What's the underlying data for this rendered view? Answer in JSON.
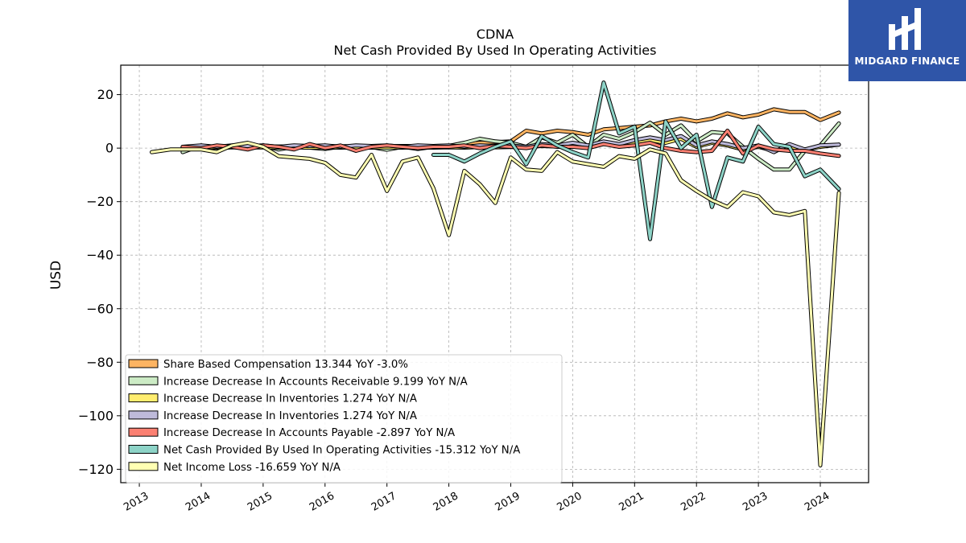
{
  "chart_data": {
    "type": "line",
    "title": "CDNA",
    "subtitle": "Net Cash Provided By Used In Operating Activities",
    "ylabel": "USD",
    "xlabel": "",
    "ylim": [
      -125,
      31
    ],
    "xlim": [
      2012.7,
      2024.78
    ],
    "yticks": [
      20,
      0,
      -20,
      -40,
      -60,
      -80,
      -100,
      -120
    ],
    "ytick_labels": [
      "20",
      "0",
      "−20",
      "−40",
      "−60",
      "−80",
      "−100",
      "−120"
    ],
    "xticks": [
      2013,
      2014,
      2015,
      2016,
      2017,
      2018,
      2019,
      2020,
      2021,
      2022,
      2023,
      2024
    ],
    "xtick_labels": [
      "2013",
      "2014",
      "2015",
      "2016",
      "2017",
      "2018",
      "2019",
      "2020",
      "2021",
      "2022",
      "2023",
      "2024"
    ],
    "grid": true,
    "legend_position": "lower-left",
    "series": [
      {
        "name": "Share Based Compensation",
        "legend_label": "Share Based Compensation  13.344 YoY -3.0%",
        "color": "#fdb462",
        "x": [
          2013.7,
          2014.0,
          2014.25,
          2014.5,
          2014.75,
          2015.0,
          2015.25,
          2015.5,
          2015.75,
          2016.0,
          2016.25,
          2016.5,
          2016.75,
          2017.0,
          2017.25,
          2017.5,
          2017.75,
          2018.0,
          2018.25,
          2018.5,
          2018.75,
          2019.0,
          2019.25,
          2019.5,
          2019.75,
          2020.0,
          2020.25,
          2020.5,
          2020.75,
          2021.0,
          2021.25,
          2021.5,
          2021.75,
          2022.0,
          2022.25,
          2022.5,
          2022.75,
          2023.0,
          2023.25,
          2023.5,
          2023.75,
          2024.0,
          2024.3
        ],
        "y": [
          0.3,
          0.5,
          0.5,
          0.6,
          0.6,
          0.5,
          0.6,
          0.6,
          0.6,
          0.7,
          0.7,
          0.7,
          0.7,
          0.8,
          0.8,
          0.8,
          0.8,
          0.9,
          1.5,
          2.0,
          2.2,
          2.5,
          6.5,
          5.5,
          6.5,
          6.0,
          5.0,
          7.0,
          7.5,
          8.0,
          8.5,
          10.0,
          11.0,
          10.0,
          11.0,
          13.0,
          11.5,
          12.5,
          14.5,
          13.5,
          13.5,
          10.5,
          13.3
        ]
      },
      {
        "name": "Increase Decrease In Accounts Receivable",
        "legend_label": "Increase Decrease In Accounts Receivable  9.199 YoY N/A",
        "color": "#ccebc5",
        "x": [
          2013.7,
          2014.0,
          2014.25,
          2014.5,
          2014.75,
          2015.0,
          2015.25,
          2015.5,
          2015.75,
          2016.0,
          2016.25,
          2016.5,
          2016.75,
          2017.0,
          2017.25,
          2017.5,
          2017.75,
          2018.0,
          2018.25,
          2018.5,
          2018.75,
          2019.0,
          2019.25,
          2019.5,
          2019.75,
          2020.0,
          2020.25,
          2020.5,
          2020.75,
          2021.0,
          2021.25,
          2021.5,
          2021.75,
          2022.0,
          2022.25,
          2022.5,
          2022.75,
          2023.0,
          2023.25,
          2023.5,
          2023.75,
          2024.0,
          2024.3
        ],
        "y": [
          -1.5,
          1.0,
          -0.5,
          0.5,
          0.3,
          1.0,
          -0.5,
          0.5,
          0.2,
          -0.3,
          0.6,
          -0.5,
          0.4,
          -0.6,
          0.5,
          -0.3,
          0.5,
          0.8,
          2.0,
          3.5,
          2.5,
          2.0,
          0.5,
          4.0,
          2.0,
          5.0,
          0.5,
          5.0,
          3.5,
          6.0,
          9.5,
          5.0,
          8.5,
          2.5,
          6.0,
          5.5,
          0.5,
          -4.0,
          -8.0,
          -8.0,
          -1.0,
          1.0,
          9.2
        ]
      },
      {
        "name": "Increase Decrease In Inventories",
        "legend_label": "Increase Decrease In Inventories  1.274 YoY N/A",
        "color": "#ffed6f",
        "x": [
          2013.7,
          2014.0,
          2014.25,
          2014.5,
          2014.75,
          2015.0,
          2015.25,
          2015.5,
          2015.75,
          2016.0,
          2016.25,
          2016.5,
          2016.75,
          2017.0,
          2017.25,
          2017.5,
          2017.75,
          2018.0,
          2018.25,
          2018.5,
          2018.75,
          2019.0,
          2019.25,
          2019.5,
          2019.75,
          2020.0,
          2020.25,
          2020.5,
          2020.75,
          2021.0,
          2021.25,
          2021.5,
          2021.75,
          2022.0,
          2022.25,
          2022.5,
          2022.75,
          2023.0,
          2023.25,
          2023.5,
          2023.75,
          2024.0,
          2024.3
        ],
        "y": [
          0.2,
          0.3,
          0.2,
          0.3,
          0.2,
          0.3,
          0.2,
          0.3,
          0.2,
          0.3,
          0.2,
          0.3,
          0.2,
          0.3,
          0.2,
          0.3,
          0.2,
          0.3,
          0.2,
          0.4,
          0.3,
          0.4,
          0.5,
          0.8,
          0.6,
          1.0,
          0.5,
          1.5,
          1.0,
          2.0,
          3.0,
          2.0,
          3.5,
          0.5,
          2.0,
          1.0,
          -0.5,
          0.5,
          -1.0,
          0.5,
          -0.5,
          0.5,
          1.3
        ]
      },
      {
        "name": "Increase Decrease In Inventories",
        "legend_label": "Increase Decrease In Inventories  1.274 YoY N/A",
        "color": "#bebada",
        "x": [
          2013.7,
          2014.0,
          2014.25,
          2014.5,
          2014.75,
          2015.0,
          2015.25,
          2015.5,
          2015.75,
          2016.0,
          2016.25,
          2016.5,
          2016.75,
          2017.0,
          2017.25,
          2017.5,
          2017.75,
          2018.0,
          2018.25,
          2018.5,
          2018.75,
          2019.0,
          2019.25,
          2019.5,
          2019.75,
          2020.0,
          2020.25,
          2020.5,
          2020.75,
          2021.0,
          2021.25,
          2021.5,
          2021.75,
          2022.0,
          2022.25,
          2022.5,
          2022.75,
          2023.0,
          2023.25,
          2023.5,
          2023.75,
          2024.0,
          2024.3
        ],
        "y": [
          0.5,
          1.0,
          0.5,
          1.0,
          0.8,
          1.0,
          0.5,
          1.0,
          0.8,
          1.0,
          0.5,
          1.0,
          0.8,
          1.0,
          0.5,
          1.0,
          0.8,
          1.0,
          0.5,
          1.0,
          0.8,
          1.0,
          0.5,
          1.5,
          1.0,
          2.0,
          1.0,
          2.5,
          1.5,
          3.0,
          4.0,
          3.0,
          4.5,
          1.0,
          2.5,
          1.5,
          0.0,
          1.0,
          -1.5,
          1.5,
          -0.5,
          1.0,
          1.3
        ]
      },
      {
        "name": "Increase Decrease In Accounts Payable",
        "legend_label": "Increase Decrease In Accounts Payable  -2.897 YoY N/A",
        "color": "#fb8072",
        "x": [
          2013.7,
          2014.0,
          2014.25,
          2014.5,
          2014.75,
          2015.0,
          2015.25,
          2015.5,
          2015.75,
          2016.0,
          2016.25,
          2016.5,
          2016.75,
          2017.0,
          2017.25,
          2017.5,
          2017.75,
          2018.0,
          2018.25,
          2018.5,
          2018.75,
          2019.0,
          2019.25,
          2019.5,
          2019.75,
          2020.0,
          2020.25,
          2020.5,
          2020.75,
          2021.0,
          2021.25,
          2021.5,
          2021.75,
          2022.0,
          2022.25,
          2022.5,
          2022.75,
          2023.0,
          2023.25,
          2023.5,
          2023.75,
          2024.0,
          2024.3
        ],
        "y": [
          0.5,
          0.0,
          1.0,
          0.5,
          -0.5,
          1.0,
          0.5,
          -0.5,
          1.5,
          0.0,
          1.0,
          -1.0,
          0.5,
          1.0,
          0.5,
          0.0,
          0.5,
          0.5,
          1.0,
          0.0,
          0.8,
          0.5,
          0.0,
          1.0,
          0.5,
          0.5,
          0.0,
          1.5,
          0.5,
          1.0,
          2.0,
          0.0,
          -1.0,
          -1.5,
          -1.0,
          6.5,
          -2.0,
          1.0,
          -0.5,
          -1.0,
          -1.0,
          -2.0,
          -2.9
        ]
      },
      {
        "name": "Net Cash Provided By Used In Operating Activities",
        "legend_label": "Net Cash Provided By Used In Operating Activities  -15.312 YoY N/A",
        "color": "#8dd3c7",
        "x": [
          2017.75,
          2018.0,
          2018.25,
          2018.5,
          2018.75,
          2019.0,
          2019.25,
          2019.5,
          2019.75,
          2020.0,
          2020.25,
          2020.5,
          2020.75,
          2021.0,
          2021.25,
          2021.5,
          2021.75,
          2022.0,
          2022.25,
          2022.5,
          2022.75,
          2023.0,
          2023.25,
          2023.5,
          2023.75,
          2024.0,
          2024.3
        ],
        "y": [
          -2.5,
          -2.5,
          -5.0,
          -2.0,
          0.5,
          2.5,
          -6.0,
          4.5,
          1.0,
          -1.5,
          -3.5,
          24.5,
          5.5,
          8.0,
          -34.0,
          10.0,
          0.0,
          5.0,
          -22.0,
          -3.5,
          -5.0,
          8.0,
          1.5,
          0.5,
          -10.5,
          -8.0,
          -15.3
        ]
      },
      {
        "name": "Net Income Loss",
        "legend_label": "Net Income Loss  -16.659 YoY N/A",
        "color": "#ffffb3",
        "x": [
          2013.2,
          2013.5,
          2013.75,
          2014.0,
          2014.25,
          2014.5,
          2014.75,
          2015.0,
          2015.25,
          2015.5,
          2015.75,
          2016.0,
          2016.25,
          2016.5,
          2016.75,
          2017.0,
          2017.25,
          2017.5,
          2017.75,
          2018.0,
          2018.25,
          2018.5,
          2018.75,
          2019.0,
          2019.25,
          2019.5,
          2019.75,
          2020.0,
          2020.25,
          2020.5,
          2020.75,
          2021.0,
          2021.25,
          2021.5,
          2021.75,
          2022.0,
          2022.25,
          2022.5,
          2022.75,
          2023.0,
          2023.25,
          2023.5,
          2023.75,
          2024.0,
          2024.3
        ],
        "y": [
          -1.5,
          -0.5,
          -0.5,
          -0.5,
          -1.5,
          1.0,
          2.0,
          0.5,
          -3.0,
          -3.5,
          -4.0,
          -5.5,
          -10.0,
          -11.0,
          -2.5,
          -16.0,
          -5.0,
          -3.5,
          -15.0,
          -32.5,
          -8.5,
          -13.5,
          -20.5,
          -3.5,
          -8.0,
          -8.5,
          -1.5,
          -5.0,
          -6.0,
          -7.0,
          -3.0,
          -4.0,
          -0.5,
          -2.0,
          -12.0,
          -16.0,
          -19.5,
          -22.0,
          -16.5,
          -18.0,
          -24.0,
          -25.0,
          -23.5,
          -118.5,
          -16.7
        ]
      }
    ]
  },
  "logo": {
    "text": "MIDGARD FINANCE",
    "background": "#2f55a8"
  }
}
